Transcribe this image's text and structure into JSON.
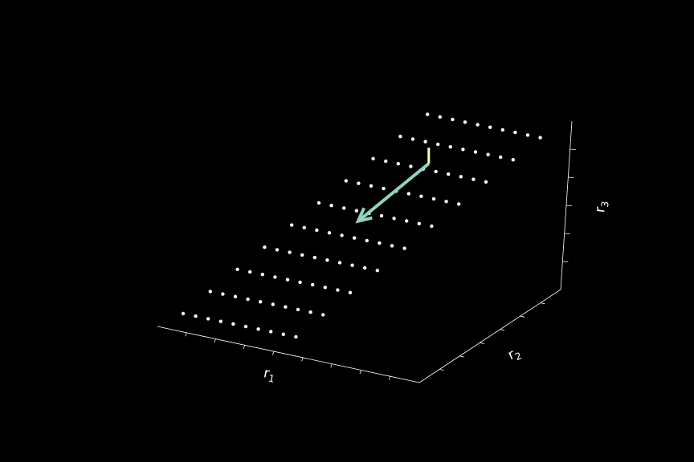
{
  "chart_data": {
    "type": "scatter",
    "projection": "3d",
    "background": "#000000",
    "grid": false,
    "axes": {
      "x": {
        "label": "r",
        "subscript": "1"
      },
      "y": {
        "label": "r",
        "subscript": "2"
      },
      "z": {
        "label": "r",
        "subscript": "3"
      }
    },
    "lattice": {
      "color": "#ffffff",
      "rows": 10,
      "columns": 10
    },
    "vectors": [
      {
        "name": "",
        "color": "#8fd3c0",
        "from": [
          5.3,
          4.0,
          0.5
        ],
        "to": [
          5.3,
          6.6,
          0.5
        ]
      },
      {
        "name": "",
        "color": "#fdfcb8",
        "from": [
          5.3,
          6.6,
          0.5
        ],
        "to": [
          5.3,
          6.6,
          0.95
        ]
      }
    ]
  }
}
